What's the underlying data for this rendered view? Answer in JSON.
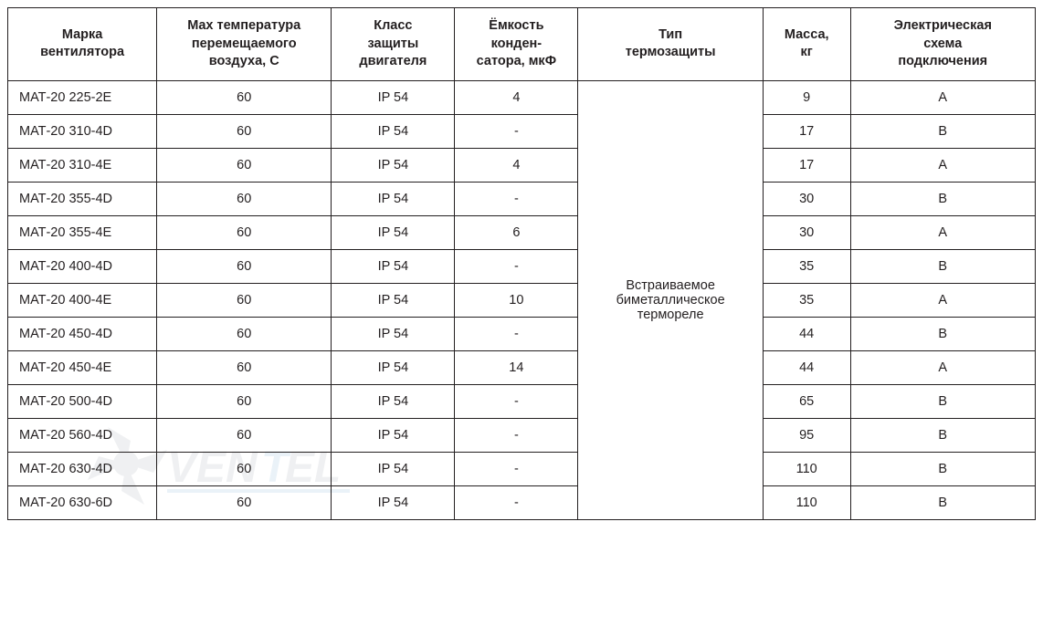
{
  "table": {
    "columns": [
      {
        "key": "model",
        "label": "Марка\nвентилятора"
      },
      {
        "key": "temp",
        "label": "Max температура\nперемещаемого\nвоздуха, С"
      },
      {
        "key": "class",
        "label": "Класс\nзащиты\nдвигателя"
      },
      {
        "key": "cap",
        "label": "Ёмкость\nконден-\nсатора, мкФ"
      },
      {
        "key": "type",
        "label": "Тип\nтермозащиты"
      },
      {
        "key": "mass",
        "label": "Масса,\nкг"
      },
      {
        "key": "schema",
        "label": "Электрическая\nсхема\nподключения"
      }
    ],
    "merged_type_cell": "Встраиваемое биметаллическое термореле",
    "rows": [
      {
        "model": "МАТ-20 225-2E",
        "temp": "60",
        "class": "IP 54",
        "cap": "4",
        "mass": "9",
        "schema": "А"
      },
      {
        "model": "МАТ-20 310-4D",
        "temp": "60",
        "class": "IP 54",
        "cap": "-",
        "mass": "17",
        "schema": "В"
      },
      {
        "model": "МАТ-20 310-4E",
        "temp": "60",
        "class": "IP 54",
        "cap": "4",
        "mass": "17",
        "schema": "А"
      },
      {
        "model": "МАТ-20 355-4D",
        "temp": "60",
        "class": "IP 54",
        "cap": "-",
        "mass": "30",
        "schema": "В"
      },
      {
        "model": "МАТ-20 355-4E",
        "temp": "60",
        "class": "IP 54",
        "cap": "6",
        "mass": "30",
        "schema": "А"
      },
      {
        "model": "МАТ-20 400-4D",
        "temp": "60",
        "class": "IP 54",
        "cap": "-",
        "mass": "35",
        "schema": "В"
      },
      {
        "model": "МАТ-20 400-4E",
        "temp": "60",
        "class": "IP 54",
        "cap": "10",
        "mass": "35",
        "schema": "А"
      },
      {
        "model": "МАТ-20 450-4D",
        "temp": "60",
        "class": "IP 54",
        "cap": "-",
        "mass": "44",
        "schema": "В"
      },
      {
        "model": "МАТ-20 450-4E",
        "temp": "60",
        "class": "IP 54",
        "cap": "14",
        "mass": "44",
        "schema": "А"
      },
      {
        "model": "МАТ-20 500-4D",
        "temp": "60",
        "class": "IP 54",
        "cap": "-",
        "mass": "65",
        "schema": "В"
      },
      {
        "model": "МАТ-20 560-4D",
        "temp": "60",
        "class": "IP 54",
        "cap": "-",
        "mass": "95",
        "schema": "В"
      },
      {
        "model": "МАТ-20 630-4D",
        "temp": "60",
        "class": "IP 54",
        "cap": "-",
        "mass": "110",
        "schema": "В"
      },
      {
        "model": "МАТ-20 630-6D",
        "temp": "60",
        "class": "IP 54",
        "cap": "-",
        "mass": "110",
        "schema": "В"
      }
    ],
    "colors": {
      "border": "#231f20",
      "text": "#231f20",
      "background": "#ffffff"
    },
    "font": {
      "family": "Arial",
      "size_pt": 11,
      "header_bold": true
    },
    "column_widths_pct": [
      14.5,
      17,
      12,
      12,
      18,
      8.5,
      18
    ]
  },
  "watermark": {
    "text": "VENTEL",
    "color_dark": "#6c7a84",
    "color_accent": "#3a8bc2",
    "opacity": 0.1
  }
}
